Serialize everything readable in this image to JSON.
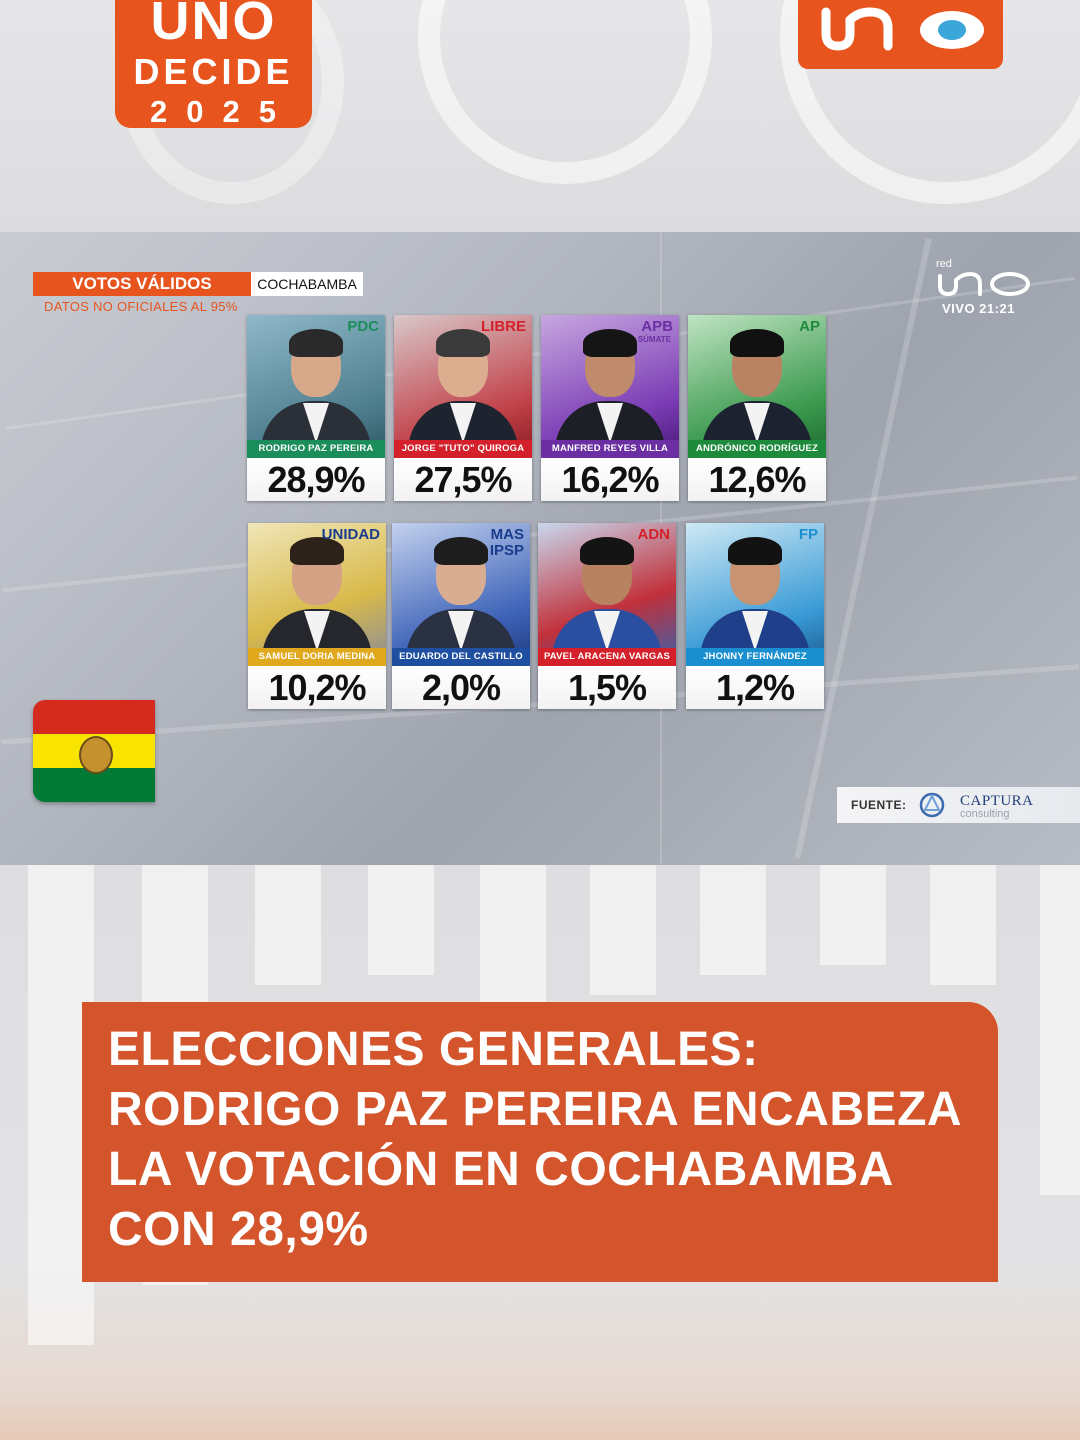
{
  "branding": {
    "show_line1": "UNO",
    "show_line2": "DECIDE",
    "show_line3": "2025",
    "network_name": "red UNO",
    "accent_color": "#e8541e"
  },
  "broadcast": {
    "votes_label": "VOTOS VÁLIDOS",
    "region": "COCHABAMBA",
    "disclaimer": "DATOS NO OFICIALES AL 95%",
    "live_network": "red",
    "live_status": "VIVO 21:21",
    "source_label": "FUENTE:",
    "source_name": "CAPTURA",
    "source_sub": "consulting",
    "candidates": [
      {
        "party": "PDC",
        "party_sub": "",
        "name": "RODRIGO PAZ PEREIRA",
        "percent": "28,9%",
        "party_color": "#1a8d5a",
        "bar_color": "#1a8d5a"
      },
      {
        "party": "LIBRE",
        "party_sub": "",
        "name": "JORGE \"TUTO\" QUIROGA",
        "percent": "27,5%",
        "party_color": "#d3202a",
        "bar_color": "#d3202a"
      },
      {
        "party": "APB",
        "party_sub": "SÚMATE",
        "name": "MANFRED REYES VILLA",
        "percent": "16,2%",
        "party_color": "#6b2fa3",
        "bar_color": "#6b2fa3"
      },
      {
        "party": "AP",
        "party_sub": "",
        "name": "ANDRÓNICO RODRÍGUEZ",
        "percent": "12,6%",
        "party_color": "#1d8a3c",
        "bar_color": "#1d8a3c"
      },
      {
        "party": "UNIDAD",
        "party_sub": "",
        "name": "SAMUEL DORIA MEDINA",
        "percent": "10,2%",
        "party_color": "#1a3c8c",
        "bar_color": "#e0a81c"
      },
      {
        "party": "MAS\nIPSP",
        "party_sub": "",
        "name": "EDUARDO DEL CASTILLO",
        "percent": "2,0%",
        "party_color": "#1a3c8c",
        "bar_color": "#1f4fa0"
      },
      {
        "party": "ADN",
        "party_sub": "",
        "name": "PAVEL ARACENA VARGAS",
        "percent": "1,5%",
        "party_color": "#d3202a",
        "bar_color": "#d3202a"
      },
      {
        "party": "FP",
        "party_sub": "",
        "name": "JHONNY FERNÁNDEZ",
        "percent": "1,2%",
        "party_color": "#1a8fd0",
        "bar_color": "#1a8fd0"
      }
    ]
  },
  "headline": {
    "text": "ELECCIONES GENERALES:\nRODRIGO PAZ PEREIRA ENCABEZA\nLA VOTACIÓN EN COCHABAMBA\nCON 28,9%"
  }
}
